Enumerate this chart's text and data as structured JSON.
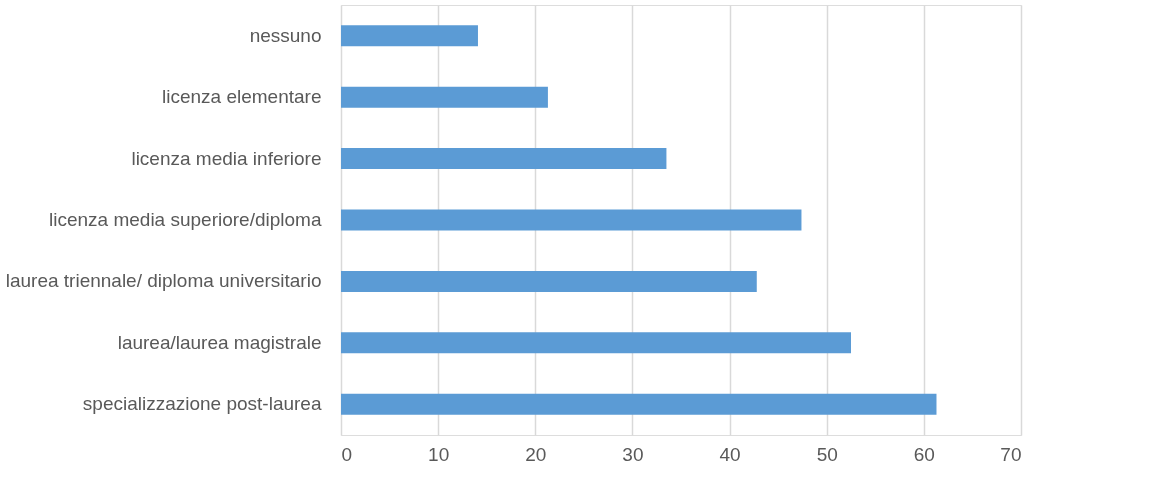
{
  "chart_data": {
    "type": "bar",
    "orientation": "horizontal",
    "categories": [
      "nessuno",
      "licenza elementare",
      "licenza media inferiore",
      "licenza media superiore/diploma",
      "laurea triennale/ diploma universitario",
      "laurea/laurea magistrale",
      "specializzazione post-laurea"
    ],
    "values": [
      14.1,
      21.3,
      33.5,
      47.4,
      42.8,
      52.5,
      61.3
    ],
    "color": "#5b9bd5",
    "xlim": [
      0,
      70
    ],
    "xticks": [
      0,
      10,
      20,
      30,
      40,
      50,
      60,
      70
    ],
    "grid": "x"
  }
}
